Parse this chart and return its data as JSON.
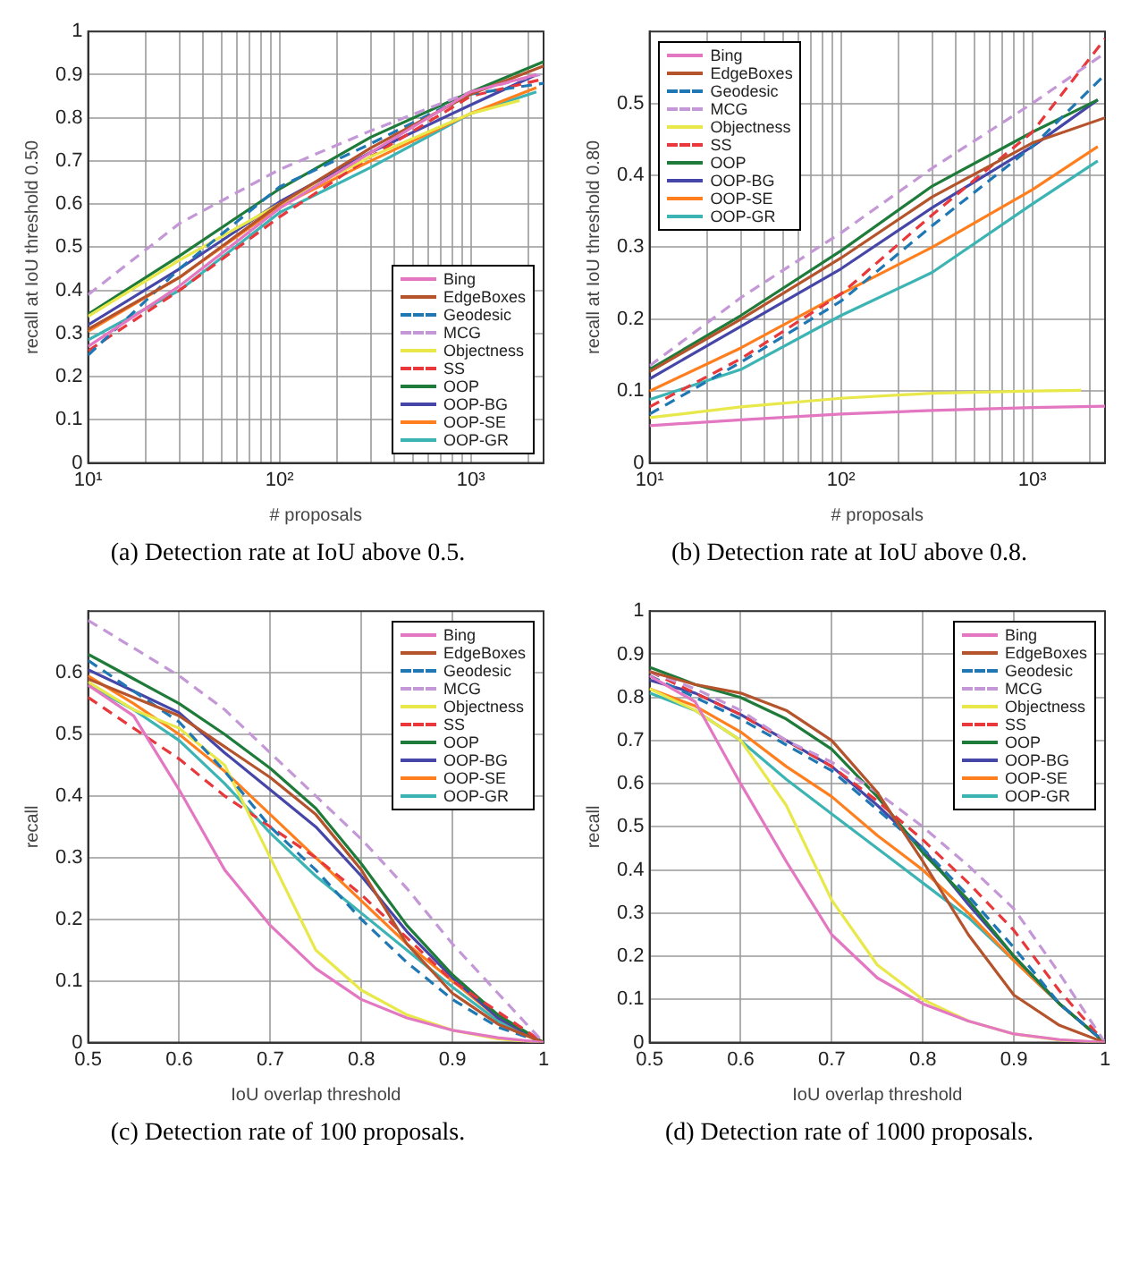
{
  "chart_data": [
    {
      "type": "line",
      "title": "(a) Detection rate at IoU above 0.5.",
      "xlabel": "# proposals",
      "ylabel": "recall at IoU threshold 0.50",
      "log": "x",
      "grid": true,
      "legend": "bottom right",
      "xlim": [
        10,
        2400
      ],
      "ylim": [
        0,
        1
      ],
      "xticks": [
        {
          "value": 10,
          "label": "10¹"
        },
        {
          "value": 20,
          "label": null
        },
        {
          "value": 30,
          "label": null
        },
        {
          "value": 40,
          "label": null
        },
        {
          "value": 50,
          "label": null
        },
        {
          "value": 60,
          "label": null
        },
        {
          "value": 70,
          "label": null
        },
        {
          "value": 80,
          "label": null
        },
        {
          "value": 90,
          "label": null
        },
        {
          "value": 100,
          "label": "10²"
        },
        {
          "value": 200,
          "label": null
        },
        {
          "value": 300,
          "label": null
        },
        {
          "value": 400,
          "label": null
        },
        {
          "value": 500,
          "label": null
        },
        {
          "value": 600,
          "label": null
        },
        {
          "value": 700,
          "label": null
        },
        {
          "value": 800,
          "label": null
        },
        {
          "value": 900,
          "label": null
        },
        {
          "value": 1000,
          "label": "10³"
        },
        {
          "value": 2000,
          "label": null
        }
      ],
      "yticks": [
        0,
        0.1,
        0.2,
        0.3,
        0.4,
        0.5,
        0.6,
        0.7,
        0.8,
        0.9,
        1
      ],
      "series": [
        {
          "name": "Bing",
          "color": "#e377c2",
          "x": [
            10,
            30,
            100,
            300,
            1000,
            2200
          ],
          "values": [
            0.27,
            0.41,
            0.59,
            0.72,
            0.86,
            0.9
          ]
        },
        {
          "name": "EdgeBoxes",
          "color": "#b5532c",
          "x": [
            10,
            30,
            100,
            300,
            1000,
            2400
          ],
          "values": [
            0.31,
            0.43,
            0.6,
            0.73,
            0.855,
            0.92
          ]
        },
        {
          "name": "Geodesic",
          "color": "#1f77b4",
          "line_style": "dashed",
          "x": [
            10,
            30,
            100,
            300,
            1000,
            2400
          ],
          "values": [
            0.25,
            0.45,
            0.64,
            0.74,
            0.855,
            0.88
          ]
        },
        {
          "name": "MCG",
          "color": "#c497d6",
          "line_style": "dashed",
          "x": [
            10,
            30,
            100,
            300,
            1000,
            2300
          ],
          "values": [
            0.39,
            0.555,
            0.68,
            0.77,
            0.86,
            0.9
          ]
        },
        {
          "name": "Objectness",
          "color": "#e8e84a",
          "x": [
            10,
            30,
            100,
            300,
            1000,
            1800
          ],
          "values": [
            0.34,
            0.47,
            0.6,
            0.71,
            0.81,
            0.84
          ]
        },
        {
          "name": "SS",
          "color": "#e8383b",
          "line_style": "dashed",
          "x": [
            10,
            30,
            100,
            300,
            1000,
            2400
          ],
          "values": [
            0.26,
            0.4,
            0.57,
            0.71,
            0.85,
            0.89
          ]
        },
        {
          "name": "OOP",
          "color": "#1e7b3a",
          "x": [
            10,
            30,
            100,
            300,
            1000,
            2400
          ],
          "values": [
            0.345,
            0.48,
            0.635,
            0.755,
            0.86,
            0.93
          ]
        },
        {
          "name": "OOP-BG",
          "color": "#4646a8",
          "x": [
            10,
            30,
            100,
            300,
            1000,
            2200
          ],
          "values": [
            0.32,
            0.45,
            0.605,
            0.72,
            0.83,
            0.9
          ]
        },
        {
          "name": "OOP-SE",
          "color": "#ff7f1e",
          "x": [
            10,
            30,
            100,
            300,
            1000,
            2200
          ],
          "values": [
            0.305,
            0.43,
            0.595,
            0.7,
            0.81,
            0.87
          ]
        },
        {
          "name": "OOP-GR",
          "color": "#3cb4b4",
          "x": [
            10,
            30,
            100,
            300,
            1000,
            2200
          ],
          "values": [
            0.285,
            0.4,
            0.58,
            0.685,
            0.81,
            0.86
          ]
        }
      ]
    },
    {
      "type": "line",
      "title": "(b) Detection rate at IoU above 0.8.",
      "xlabel": "# proposals",
      "ylabel": "recall at IoU threshold 0.80",
      "log": "x",
      "grid": true,
      "legend": "top left",
      "xlim": [
        10,
        2400
      ],
      "ylim": [
        0,
        0.6
      ],
      "xticks": [
        {
          "value": 10,
          "label": "10¹"
        },
        {
          "value": 20,
          "label": null
        },
        {
          "value": 30,
          "label": null
        },
        {
          "value": 40,
          "label": null
        },
        {
          "value": 50,
          "label": null
        },
        {
          "value": 60,
          "label": null
        },
        {
          "value": 70,
          "label": null
        },
        {
          "value": 80,
          "label": null
        },
        {
          "value": 90,
          "label": null
        },
        {
          "value": 100,
          "label": "10²"
        },
        {
          "value": 200,
          "label": null
        },
        {
          "value": 300,
          "label": null
        },
        {
          "value": 400,
          "label": null
        },
        {
          "value": 500,
          "label": null
        },
        {
          "value": 600,
          "label": null
        },
        {
          "value": 700,
          "label": null
        },
        {
          "value": 800,
          "label": null
        },
        {
          "value": 900,
          "label": null
        },
        {
          "value": 1000,
          "label": "10³"
        },
        {
          "value": 2000,
          "label": null
        }
      ],
      "yticks": [
        0,
        0.1,
        0.2,
        0.3,
        0.4,
        0.5
      ],
      "series": [
        {
          "name": "Bing",
          "color": "#e377c2",
          "x": [
            10,
            30,
            100,
            300,
            1000,
            2400
          ],
          "values": [
            0.052,
            0.06,
            0.068,
            0.073,
            0.077,
            0.079
          ]
        },
        {
          "name": "EdgeBoxes",
          "color": "#b5532c",
          "x": [
            10,
            30,
            100,
            300,
            1000,
            2400
          ],
          "values": [
            0.127,
            0.2,
            0.285,
            0.37,
            0.445,
            0.48
          ]
        },
        {
          "name": "Geodesic",
          "color": "#1f77b4",
          "line_style": "dashed",
          "x": [
            10,
            30,
            100,
            300,
            1000,
            2400
          ],
          "values": [
            0.068,
            0.14,
            0.225,
            0.33,
            0.44,
            0.54
          ]
        },
        {
          "name": "MCG",
          "color": "#c497d6",
          "line_style": "dashed",
          "x": [
            10,
            30,
            100,
            300,
            1000,
            2400
          ],
          "values": [
            0.135,
            0.23,
            0.32,
            0.41,
            0.5,
            0.57
          ]
        },
        {
          "name": "Objectness",
          "color": "#e8e84a",
          "x": [
            10,
            30,
            100,
            300,
            1000,
            1800
          ],
          "values": [
            0.063,
            0.078,
            0.09,
            0.097,
            0.1,
            0.101
          ]
        },
        {
          "name": "SS",
          "color": "#e8383b",
          "line_style": "dashed",
          "x": [
            10,
            30,
            100,
            300,
            1000,
            2400
          ],
          "values": [
            0.078,
            0.145,
            0.235,
            0.345,
            0.46,
            0.59
          ]
        },
        {
          "name": "OOP",
          "color": "#1e7b3a",
          "x": [
            10,
            30,
            100,
            300,
            1000,
            2200
          ],
          "values": [
            0.13,
            0.205,
            0.295,
            0.385,
            0.46,
            0.505
          ]
        },
        {
          "name": "OOP-BG",
          "color": "#4646a8",
          "x": [
            10,
            30,
            100,
            300,
            1000,
            2200
          ],
          "values": [
            0.117,
            0.19,
            0.27,
            0.355,
            0.44,
            0.505
          ]
        },
        {
          "name": "OOP-SE",
          "color": "#ff7f1e",
          "x": [
            10,
            30,
            100,
            300,
            1000,
            2200
          ],
          "values": [
            0.1,
            0.16,
            0.235,
            0.3,
            0.38,
            0.44
          ]
        },
        {
          "name": "OOP-GR",
          "color": "#3cb4b4",
          "x": [
            10,
            30,
            100,
            300,
            1000,
            2200
          ],
          "values": [
            0.088,
            0.13,
            0.205,
            0.265,
            0.36,
            0.42
          ]
        }
      ]
    },
    {
      "type": "line",
      "title": "(c) Detection rate of 100 proposals.",
      "xlabel": "IoU overlap threshold",
      "ylabel": "recall",
      "grid": true,
      "legend": "top right",
      "xlim": [
        0.5,
        1
      ],
      "ylim": [
        0,
        0.7
      ],
      "xticks": [
        0.5,
        0.6,
        0.7,
        0.8,
        0.9,
        1
      ],
      "yticks": [
        0,
        0.1,
        0.2,
        0.3,
        0.4,
        0.5,
        0.6
      ],
      "x": [
        0.5,
        0.55,
        0.6,
        0.65,
        0.7,
        0.75,
        0.8,
        0.85,
        0.9,
        0.95,
        1
      ],
      "series": [
        {
          "name": "Bing",
          "color": "#e377c2",
          "values": [
            0.58,
            0.53,
            0.41,
            0.28,
            0.19,
            0.12,
            0.07,
            0.04,
            0.02,
            0.008,
            0
          ]
        },
        {
          "name": "EdgeBoxes",
          "color": "#b5532c",
          "values": [
            0.59,
            0.56,
            0.53,
            0.48,
            0.43,
            0.37,
            0.28,
            0.16,
            0.08,
            0.03,
            0
          ]
        },
        {
          "name": "Geodesic",
          "color": "#1f77b4",
          "line_style": "dashed",
          "values": [
            0.62,
            0.57,
            0.52,
            0.44,
            0.35,
            0.28,
            0.2,
            0.13,
            0.07,
            0.025,
            0
          ]
        },
        {
          "name": "MCG",
          "color": "#c497d6",
          "line_style": "dashed",
          "values": [
            0.685,
            0.64,
            0.595,
            0.54,
            0.47,
            0.4,
            0.33,
            0.25,
            0.16,
            0.08,
            0
          ]
        },
        {
          "name": "Objectness",
          "color": "#e8e84a",
          "values": [
            0.585,
            0.54,
            0.51,
            0.45,
            0.3,
            0.15,
            0.085,
            0.045,
            0.02,
            0.006,
            0
          ]
        },
        {
          "name": "SS",
          "color": "#e8383b",
          "line_style": "dashed",
          "values": [
            0.56,
            0.51,
            0.46,
            0.4,
            0.35,
            0.3,
            0.24,
            0.17,
            0.1,
            0.05,
            0
          ]
        },
        {
          "name": "OOP",
          "color": "#1e7b3a",
          "values": [
            0.63,
            0.59,
            0.55,
            0.5,
            0.445,
            0.38,
            0.29,
            0.19,
            0.11,
            0.045,
            0
          ]
        },
        {
          "name": "OOP-BG",
          "color": "#4646a8",
          "values": [
            0.605,
            0.57,
            0.535,
            0.47,
            0.41,
            0.35,
            0.27,
            0.18,
            0.105,
            0.04,
            0
          ]
        },
        {
          "name": "OOP-SE",
          "color": "#ff7f1e",
          "values": [
            0.595,
            0.55,
            0.5,
            0.44,
            0.37,
            0.3,
            0.23,
            0.16,
            0.1,
            0.04,
            0
          ]
        },
        {
          "name": "OOP-GR",
          "color": "#3cb4b4",
          "values": [
            0.58,
            0.54,
            0.49,
            0.42,
            0.34,
            0.27,
            0.21,
            0.15,
            0.09,
            0.035,
            0
          ]
        }
      ]
    },
    {
      "type": "line",
      "title": "(d) Detection rate of 1000 proposals.",
      "xlabel": "IoU overlap threshold",
      "ylabel": "recall",
      "grid": true,
      "legend": "top right",
      "xlim": [
        0.5,
        1
      ],
      "ylim": [
        0,
        1
      ],
      "xticks": [
        0.5,
        0.6,
        0.7,
        0.8,
        0.9,
        1
      ],
      "yticks": [
        0,
        0.1,
        0.2,
        0.3,
        0.4,
        0.5,
        0.6,
        0.7,
        0.8,
        0.9,
        1
      ],
      "x": [
        0.5,
        0.55,
        0.6,
        0.65,
        0.7,
        0.75,
        0.8,
        0.85,
        0.9,
        0.95,
        1
      ],
      "series": [
        {
          "name": "Bing",
          "color": "#e377c2",
          "values": [
            0.85,
            0.79,
            0.6,
            0.42,
            0.25,
            0.15,
            0.09,
            0.05,
            0.02,
            0.007,
            0
          ]
        },
        {
          "name": "EdgeBoxes",
          "color": "#b5532c",
          "values": [
            0.86,
            0.83,
            0.81,
            0.77,
            0.7,
            0.58,
            0.42,
            0.25,
            0.11,
            0.04,
            0
          ]
        },
        {
          "name": "Geodesic",
          "color": "#1f77b4",
          "line_style": "dashed",
          "values": [
            0.85,
            0.8,
            0.75,
            0.69,
            0.63,
            0.54,
            0.45,
            0.34,
            0.22,
            0.09,
            0
          ]
        },
        {
          "name": "MCG",
          "color": "#c497d6",
          "line_style": "dashed",
          "values": [
            0.86,
            0.82,
            0.77,
            0.7,
            0.65,
            0.58,
            0.5,
            0.41,
            0.31,
            0.16,
            0
          ]
        },
        {
          "name": "Objectness",
          "color": "#e8e84a",
          "values": [
            0.82,
            0.77,
            0.7,
            0.55,
            0.33,
            0.18,
            0.1,
            0.05,
            0.02,
            0.006,
            0
          ]
        },
        {
          "name": "SS",
          "color": "#e8383b",
          "line_style": "dashed",
          "values": [
            0.86,
            0.81,
            0.76,
            0.7,
            0.64,
            0.56,
            0.47,
            0.37,
            0.26,
            0.12,
            0
          ]
        },
        {
          "name": "OOP",
          "color": "#1e7b3a",
          "values": [
            0.87,
            0.83,
            0.8,
            0.75,
            0.68,
            0.57,
            0.44,
            0.33,
            0.2,
            0.09,
            0
          ]
        },
        {
          "name": "OOP-BG",
          "color": "#4646a8",
          "values": [
            0.84,
            0.81,
            0.76,
            0.7,
            0.64,
            0.55,
            0.45,
            0.32,
            0.2,
            0.09,
            0
          ]
        },
        {
          "name": "OOP-SE",
          "color": "#ff7f1e",
          "values": [
            0.82,
            0.78,
            0.72,
            0.64,
            0.57,
            0.48,
            0.4,
            0.3,
            0.19,
            0.09,
            0
          ]
        },
        {
          "name": "OOP-GR",
          "color": "#3cb4b4",
          "values": [
            0.81,
            0.77,
            0.7,
            0.61,
            0.53,
            0.45,
            0.37,
            0.29,
            0.19,
            0.09,
            0
          ]
        }
      ]
    }
  ]
}
